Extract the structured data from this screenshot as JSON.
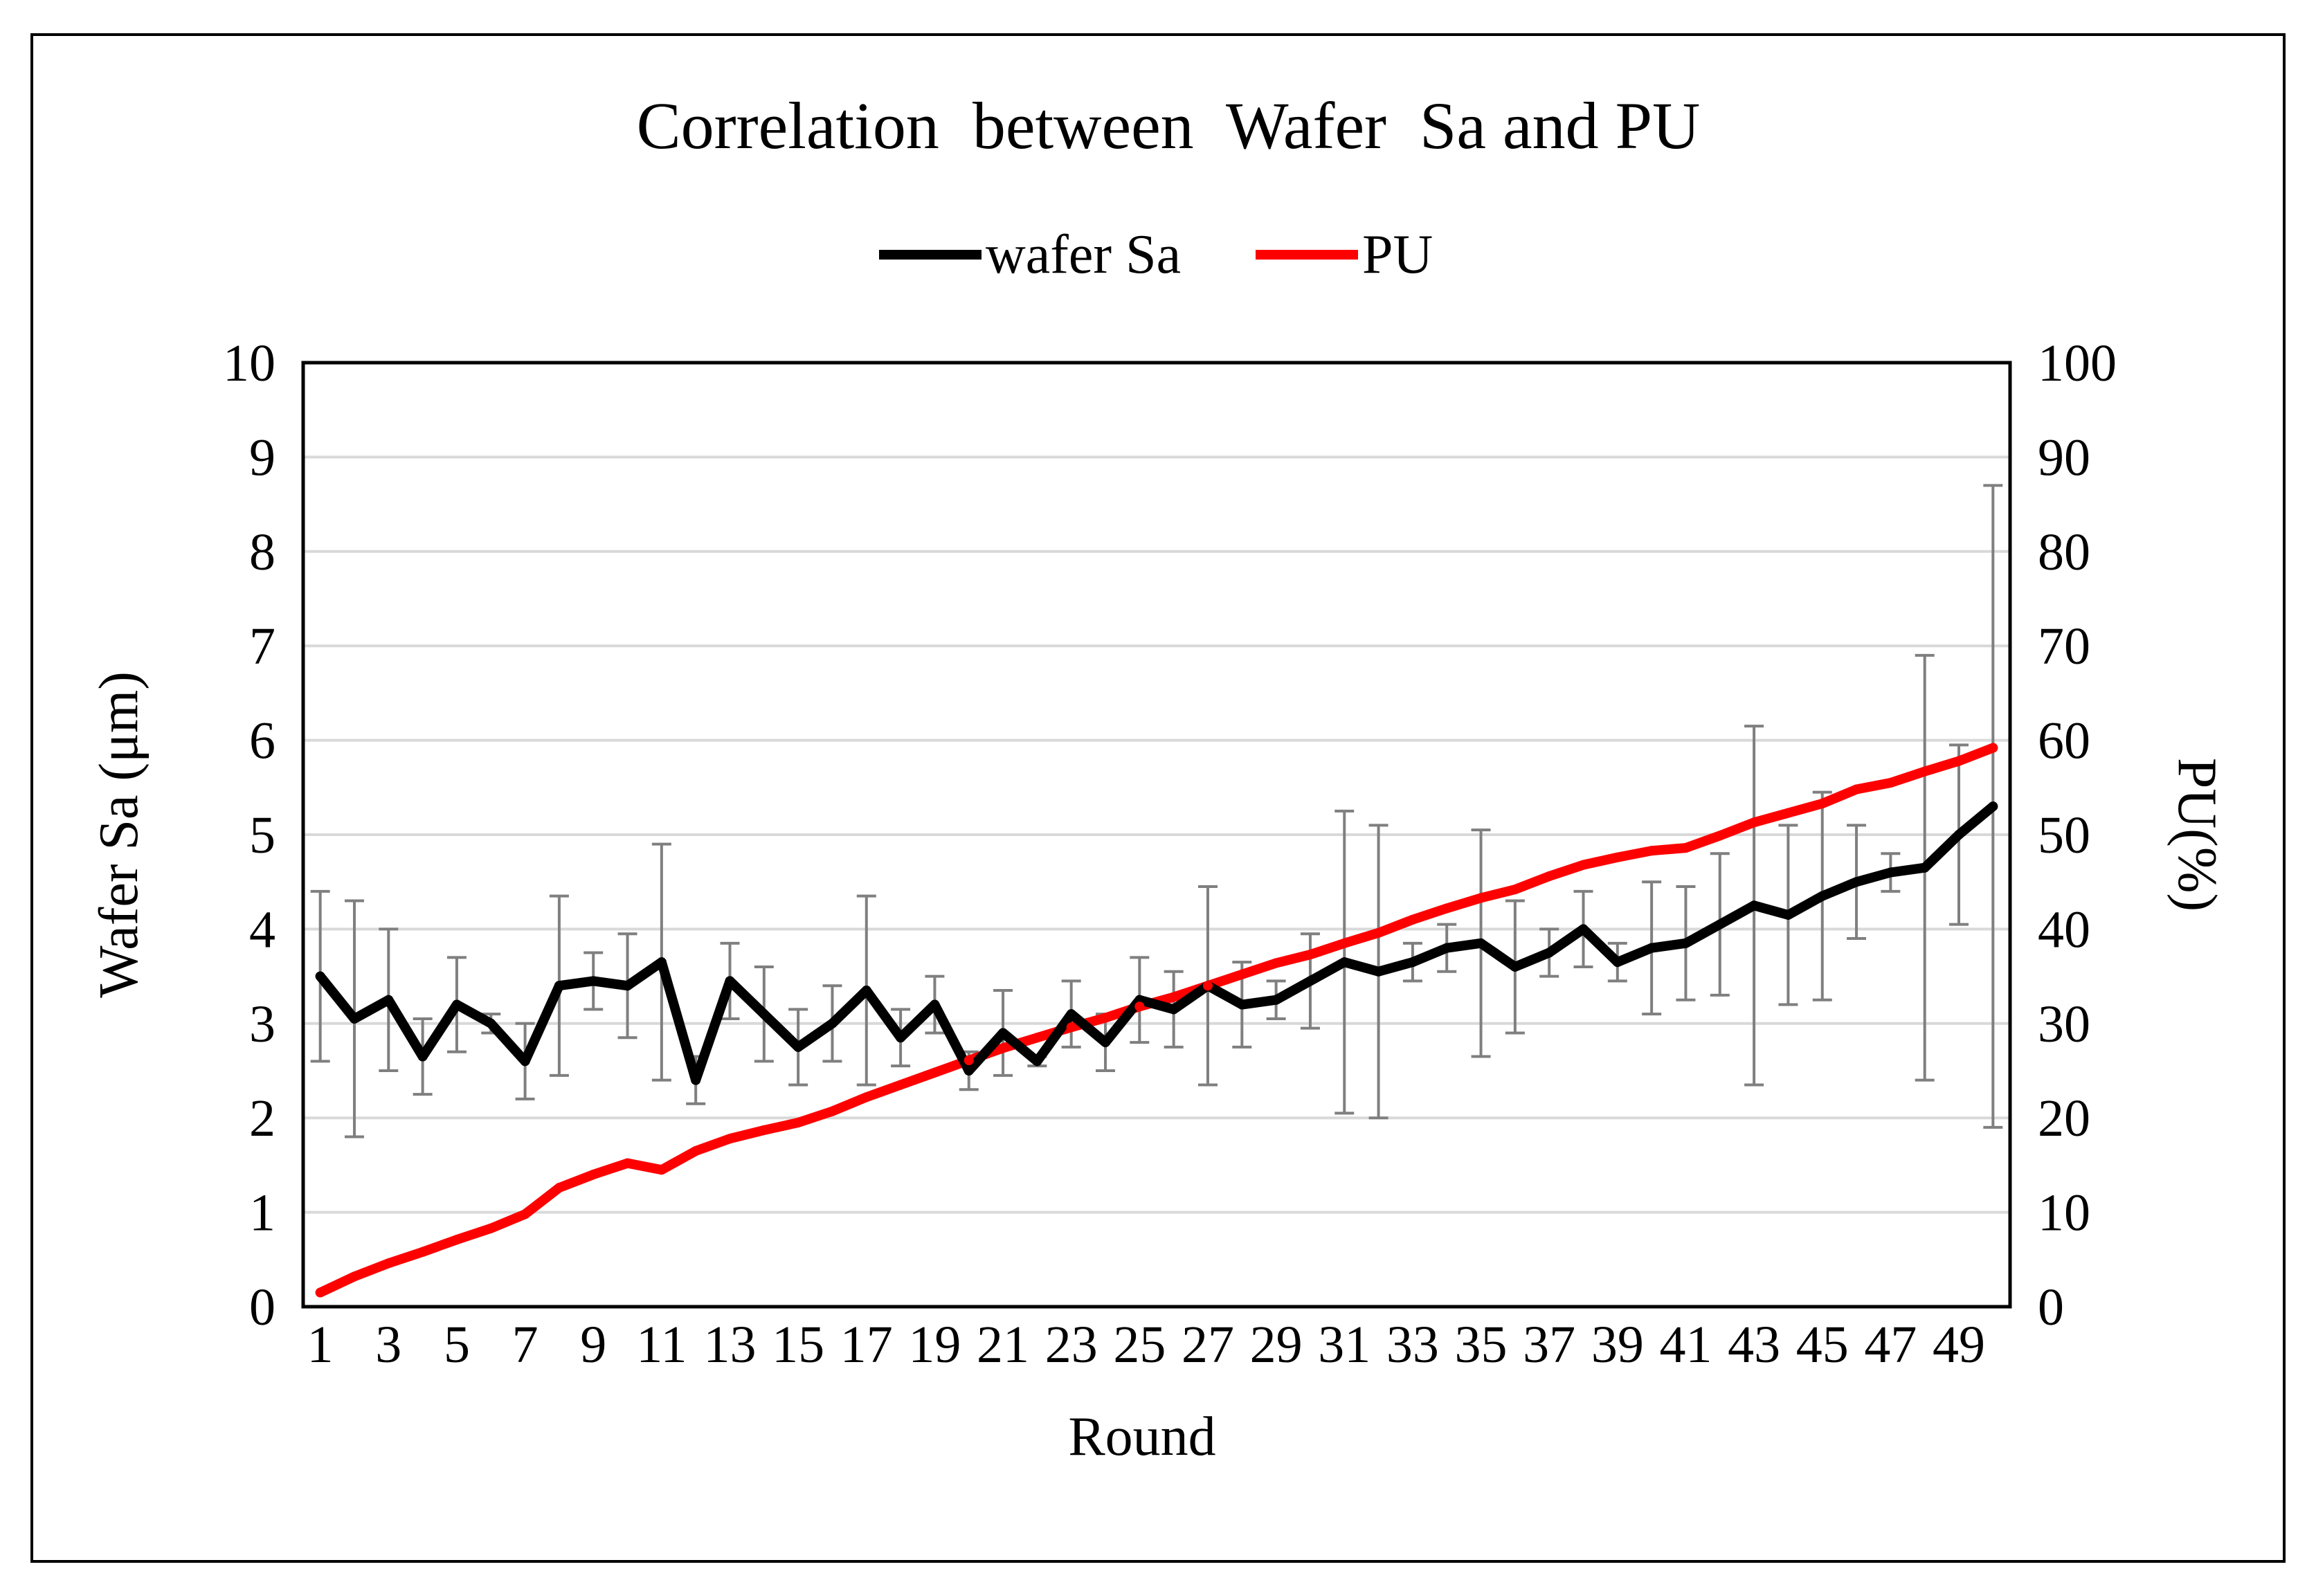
{
  "chart_data": {
    "type": "line",
    "title": "Correlation  between  Wafer  Sa and PU",
    "xlabel": "Round",
    "ylabel": "Wafer Sa (μm)",
    "y2label": "PU(%)",
    "ylim": [
      0,
      10
    ],
    "y2lim": [
      0,
      100
    ],
    "yticks": [
      "0",
      "1",
      "2",
      "3",
      "4",
      "5",
      "6",
      "7",
      "8",
      "9",
      "10"
    ],
    "y2ticks": [
      "0",
      "10",
      "20",
      "30",
      "40",
      "50",
      "60",
      "70",
      "80",
      "90",
      "100"
    ],
    "xticks": [
      "1",
      "3",
      "5",
      "7",
      "9",
      "11",
      "13",
      "15",
      "17",
      "19",
      "21",
      "23",
      "25",
      "27",
      "29",
      "31",
      "33",
      "35",
      "37",
      "39",
      "41",
      "43",
      "45",
      "47",
      "49"
    ],
    "categories": [
      1,
      2,
      3,
      4,
      5,
      6,
      7,
      8,
      9,
      10,
      11,
      12,
      13,
      14,
      15,
      16,
      17,
      18,
      19,
      20,
      21,
      22,
      23,
      24,
      25,
      26,
      27,
      28,
      29,
      30,
      31,
      32,
      33,
      34,
      35,
      36,
      37,
      38,
      39,
      40,
      41,
      42,
      43,
      44,
      45,
      46,
      47,
      48,
      49,
      50
    ],
    "legend": [
      "wafer Sa",
      "PU"
    ],
    "legend_position": "top",
    "colors": {
      "wafer_sa": "#000000",
      "pu": "#ff0000",
      "grid": "#d9d9d9",
      "errorbar": "#7f7f7f"
    },
    "series": [
      {
        "name": "wafer Sa",
        "axis": "left",
        "values": [
          3.5,
          3.05,
          3.25,
          2.65,
          3.2,
          3.0,
          2.6,
          3.4,
          3.45,
          3.4,
          3.65,
          2.4,
          3.45,
          3.1,
          2.75,
          3.0,
          3.35,
          2.85,
          3.2,
          2.5,
          2.9,
          2.6,
          3.1,
          2.8,
          3.25,
          3.15,
          3.4,
          3.2,
          3.25,
          3.45,
          3.65,
          3.55,
          3.65,
          3.8,
          3.85,
          3.6,
          3.75,
          4.0,
          3.65,
          3.8,
          3.85,
          4.05,
          4.25,
          4.15,
          4.35,
          4.5,
          4.6,
          4.65,
          5.0,
          5.3
        ],
        "error": [
          0.9,
          1.25,
          0.75,
          0.4,
          0.5,
          0.1,
          0.4,
          0.95,
          0.3,
          0.55,
          1.25,
          0.25,
          0.4,
          0.5,
          0.4,
          0.4,
          1.0,
          0.3,
          0.3,
          0.2,
          0.45,
          0.05,
          0.35,
          0.3,
          0.45,
          0.4,
          1.05,
          0.45,
          0.2,
          0.5,
          1.6,
          1.55,
          0.2,
          0.25,
          1.2,
          0.7,
          0.25,
          0.4,
          0.2,
          0.7,
          0.6,
          0.75,
          1.9,
          0.95,
          1.1,
          0.6,
          0.2,
          2.25,
          0.95,
          3.4
        ]
      },
      {
        "name": "PU",
        "axis": "right",
        "values": [
          1.5,
          3.2,
          4.6,
          5.8,
          7.1,
          8.3,
          9.8,
          12.6,
          14.0,
          15.2,
          14.5,
          16.5,
          17.8,
          18.7,
          19.5,
          20.7,
          22.2,
          23.5,
          24.8,
          26.1,
          27.4,
          28.5,
          29.6,
          30.6,
          31.8,
          32.8,
          34.0,
          35.2,
          36.4,
          37.3,
          38.5,
          39.6,
          41.0,
          42.2,
          43.3,
          44.2,
          45.6,
          46.8,
          47.6,
          48.3,
          48.6,
          49.9,
          51.3,
          52.3,
          53.3,
          54.8,
          55.5,
          56.7,
          57.8,
          59.2
        ]
      }
    ]
  }
}
